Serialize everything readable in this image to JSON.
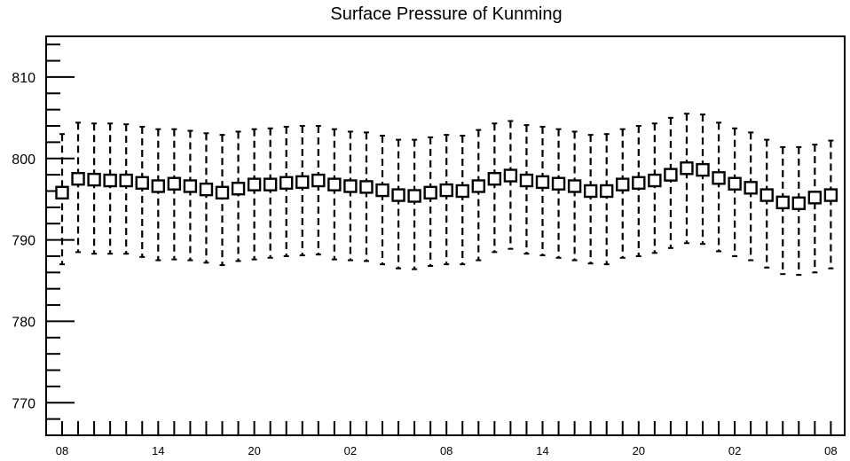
{
  "chart_data": {
    "type": "boxplot",
    "title": "Surface Pressure of Kunming",
    "xlabel": "",
    "ylabel": "",
    "ylim": [
      766,
      815
    ],
    "y_ticks": [
      770,
      780,
      790,
      800,
      810
    ],
    "x_tick_labels": [
      "08",
      "14",
      "20",
      "02",
      "08",
      "14",
      "20",
      "02",
      "08"
    ],
    "grid": false,
    "series": [
      {
        "values": [
          795.8,
          797.5,
          797.4,
          797.3,
          797.3,
          797.0,
          796.6,
          796.9,
          796.6,
          796.2,
          795.8,
          796.3,
          796.8,
          796.8,
          797.0,
          797.1,
          797.3,
          796.8,
          796.6,
          796.5,
          796.1,
          795.5,
          795.4,
          795.8,
          796.1,
          796.0,
          796.6,
          797.5,
          797.9,
          797.3,
          797.1,
          796.9,
          796.6,
          796.0,
          796.0,
          796.8,
          797.0,
          797.3,
          798.0,
          798.8,
          798.6,
          797.6,
          796.9,
          796.4,
          795.5,
          794.6,
          794.5,
          795.2,
          795.5
        ],
        "upper": [
          803.0,
          804.4,
          804.3,
          804.3,
          804.2,
          803.9,
          803.6,
          803.6,
          803.4,
          803.1,
          802.9,
          803.3,
          803.6,
          803.7,
          803.9,
          804.0,
          804.0,
          803.6,
          803.3,
          803.2,
          802.8,
          802.3,
          802.3,
          802.6,
          802.9,
          802.8,
          803.5,
          804.3,
          804.6,
          804.1,
          803.9,
          803.6,
          803.3,
          802.9,
          803.0,
          803.6,
          804.0,
          804.3,
          805.0,
          805.5,
          805.4,
          804.4,
          803.7,
          803.2,
          802.3,
          801.4,
          801.4,
          801.7,
          802.2
        ],
        "lower": [
          787.0,
          788.5,
          788.3,
          788.3,
          788.3,
          787.9,
          787.5,
          787.6,
          787.5,
          787.2,
          786.9,
          787.4,
          787.6,
          787.8,
          788.0,
          788.1,
          788.2,
          787.6,
          787.5,
          787.4,
          787.0,
          786.5,
          786.4,
          786.8,
          787.0,
          787.0,
          787.5,
          788.5,
          788.9,
          788.3,
          788.1,
          787.8,
          787.5,
          787.1,
          787.0,
          787.8,
          788.0,
          788.4,
          789.0,
          789.6,
          789.5,
          788.6,
          788.0,
          787.5,
          786.6,
          785.8,
          785.7,
          786.0,
          786.5
        ]
      }
    ]
  }
}
